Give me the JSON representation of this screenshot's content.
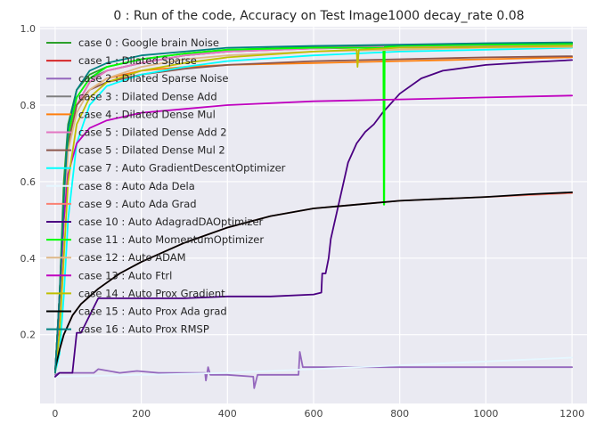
{
  "chart_data": {
    "type": "line",
    "title": "0 : Run of the code, Accuracy on Test Image1000 decay_rate 0.08",
    "xlabel": "",
    "ylabel": "",
    "xlim": [
      -35,
      1235
    ],
    "ylim": [
      0.02,
      1.005
    ],
    "xticks": [
      0,
      200,
      400,
      600,
      800,
      1000,
      1200
    ],
    "yticks": [
      0.2,
      0.4,
      0.6,
      0.8,
      1.0
    ],
    "ytick_labels": [
      "0.2",
      "0.4",
      "0.6",
      "0.8",
      "1.0"
    ],
    "grid": true,
    "legend_position": "top-left",
    "series": [
      {
        "name": "case 0 : Google brain Noise",
        "color": "#2ca02c",
        "x": [
          0,
          10,
          20,
          30,
          50,
          80,
          120,
          200,
          300,
          400,
          600,
          800,
          1000,
          1200
        ],
        "y": [
          0.1,
          0.3,
          0.6,
          0.75,
          0.84,
          0.88,
          0.9,
          0.92,
          0.935,
          0.945,
          0.952,
          0.956,
          0.958,
          0.962
        ]
      },
      {
        "name": "case 1 : Dilated Sparse",
        "color": "#d62728",
        "x": [
          0,
          10,
          20,
          30,
          50,
          80,
          120,
          200,
          300,
          400,
          600,
          800,
          1000,
          1200
        ],
        "y": [
          0.1,
          0.25,
          0.5,
          0.7,
          0.8,
          0.86,
          0.89,
          0.91,
          0.93,
          0.94,
          0.948,
          0.952,
          0.955,
          0.958
        ]
      },
      {
        "name": "case 2 : Dilated Sparse Noise",
        "color": "#9467bd",
        "x": [
          0,
          10,
          20,
          50,
          90,
          100,
          150,
          190,
          240,
          300,
          348,
          350,
          355,
          360,
          400,
          460,
          462,
          470,
          565,
          568,
          575,
          700,
          800,
          1000,
          1200
        ],
        "y": [
          0.095,
          0.1,
          0.1,
          0.1,
          0.1,
          0.11,
          0.1,
          0.105,
          0.1,
          0.1,
          0.1,
          0.08,
          0.115,
          0.095,
          0.095,
          0.09,
          0.06,
          0.095,
          0.095,
          0.155,
          0.115,
          0.115,
          0.115,
          0.115,
          0.115
        ]
      },
      {
        "name": "case 3 : Dilated Dense Add",
        "color": "#7f7f7f",
        "x": [
          0,
          10,
          20,
          30,
          50,
          80,
          120,
          200,
          300,
          400,
          600,
          800,
          1000,
          1200
        ],
        "y": [
          0.1,
          0.3,
          0.55,
          0.72,
          0.82,
          0.87,
          0.89,
          0.91,
          0.93,
          0.94,
          0.95,
          0.955,
          0.958,
          0.96
        ]
      },
      {
        "name": "case 4 : Dilated Dense Mul",
        "color": "#ff7f0e",
        "x": [
          0,
          10,
          20,
          30,
          50,
          80,
          120,
          200,
          300,
          400,
          600,
          800,
          1000,
          1200
        ],
        "y": [
          0.1,
          0.3,
          0.55,
          0.7,
          0.8,
          0.84,
          0.87,
          0.89,
          0.9,
          0.905,
          0.91,
          0.915,
          0.92,
          0.925
        ]
      },
      {
        "name": "case 5 : Dilated Dense Add 2",
        "color": "#e377c2",
        "x": [
          0,
          10,
          20,
          30,
          50,
          80,
          120,
          200,
          300,
          400,
          600,
          800,
          1000,
          1200
        ],
        "y": [
          0.1,
          0.28,
          0.52,
          0.7,
          0.8,
          0.86,
          0.89,
          0.91,
          0.93,
          0.94,
          0.948,
          0.953,
          0.956,
          0.958
        ]
      },
      {
        "name": "case 5 : Dilated Dense Mul 2",
        "color": "#8c564b",
        "x": [
          0,
          10,
          20,
          30,
          50,
          80,
          120,
          200,
          300,
          400,
          600,
          800,
          1000,
          1200
        ],
        "y": [
          0.1,
          0.3,
          0.55,
          0.7,
          0.8,
          0.84,
          0.86,
          0.88,
          0.895,
          0.905,
          0.915,
          0.92,
          0.925,
          0.928
        ]
      },
      {
        "name": "case 7 : Auto GradientDescentOptimizer",
        "color": "#00ffff",
        "x": [
          0,
          10,
          20,
          30,
          50,
          80,
          120,
          200,
          300,
          400,
          600,
          800,
          1000,
          1200
        ],
        "y": [
          0.1,
          0.15,
          0.3,
          0.5,
          0.7,
          0.8,
          0.85,
          0.88,
          0.9,
          0.915,
          0.93,
          0.94,
          0.945,
          0.95
        ]
      },
      {
        "name": "case 8 : Auto Ada Dela",
        "color": "#e6f7ff",
        "x": [
          0,
          200,
          400,
          600,
          800,
          1000,
          1200
        ],
        "y": [
          0.09,
          0.095,
          0.1,
          0.11,
          0.12,
          0.13,
          0.14
        ]
      },
      {
        "name": "case 9 : Auto Ada Grad",
        "color": "#fa8072",
        "x": [
          0,
          10,
          20,
          40,
          60,
          100,
          150,
          200,
          300,
          400,
          500,
          600,
          700,
          800,
          900,
          1000,
          1100,
          1200
        ],
        "y": [
          0.11,
          0.16,
          0.2,
          0.25,
          0.28,
          0.32,
          0.36,
          0.39,
          0.44,
          0.48,
          0.51,
          0.53,
          0.54,
          0.55,
          0.555,
          0.56,
          0.565,
          0.57
        ]
      },
      {
        "name": "case 10 : Auto AdagradDAOptimizer",
        "color": "#4b0082",
        "x": [
          0,
          10,
          40,
          50,
          60,
          100,
          200,
          300,
          400,
          500,
          600,
          618,
          620,
          628,
          635,
          640,
          660,
          680,
          700,
          720,
          740,
          760,
          800,
          850,
          900,
          1000,
          1100,
          1200
        ],
        "y": [
          0.09,
          0.1,
          0.1,
          0.205,
          0.205,
          0.295,
          0.295,
          0.295,
          0.3,
          0.3,
          0.305,
          0.31,
          0.36,
          0.36,
          0.4,
          0.45,
          0.55,
          0.65,
          0.7,
          0.73,
          0.75,
          0.78,
          0.83,
          0.87,
          0.89,
          0.905,
          0.912,
          0.918
        ]
      },
      {
        "name": "case 11 : Auto MomentumOptimizer",
        "color": "#00ff00",
        "x": [
          0,
          10,
          20,
          30,
          50,
          80,
          120,
          200,
          300,
          400,
          600,
          762,
          763,
          764,
          765,
          800,
          1000,
          1200
        ],
        "y": [
          0.1,
          0.3,
          0.55,
          0.72,
          0.82,
          0.87,
          0.9,
          0.92,
          0.935,
          0.945,
          0.95,
          0.95,
          0.54,
          0.54,
          0.952,
          0.955,
          0.958,
          0.96
        ]
      },
      {
        "name": "case 12 : Auto ADAM",
        "color": "#deb887",
        "x": [
          0,
          10,
          20,
          30,
          50,
          80,
          120,
          200,
          300,
          400,
          600,
          800,
          1000,
          1200
        ],
        "y": [
          0.1,
          0.28,
          0.5,
          0.68,
          0.78,
          0.84,
          0.87,
          0.9,
          0.92,
          0.93,
          0.94,
          0.945,
          0.95,
          0.952
        ]
      },
      {
        "name": "case 13 : Auto Ftrl",
        "color": "#bf00bf",
        "x": [
          0,
          10,
          20,
          30,
          50,
          80,
          120,
          200,
          300,
          400,
          600,
          800,
          1000,
          1200
        ],
        "y": [
          0.1,
          0.3,
          0.5,
          0.62,
          0.7,
          0.74,
          0.76,
          0.78,
          0.79,
          0.8,
          0.81,
          0.815,
          0.82,
          0.825
        ]
      },
      {
        "name": "case 14 : Auto Prox Gradient",
        "color": "#bfbf00",
        "x": [
          0,
          10,
          20,
          30,
          50,
          80,
          120,
          200,
          300,
          400,
          600,
          700,
          702,
          705,
          800,
          1000,
          1200
        ],
        "y": [
          0.1,
          0.2,
          0.4,
          0.6,
          0.75,
          0.82,
          0.86,
          0.89,
          0.91,
          0.925,
          0.94,
          0.945,
          0.9,
          0.945,
          0.95,
          0.952,
          0.955
        ]
      },
      {
        "name": "case 15 : Auto Prox Ada grad",
        "color": "#000000",
        "x": [
          0,
          10,
          20,
          40,
          60,
          100,
          150,
          200,
          300,
          400,
          500,
          600,
          700,
          800,
          900,
          1000,
          1100,
          1200
        ],
        "y": [
          0.11,
          0.16,
          0.2,
          0.25,
          0.28,
          0.32,
          0.36,
          0.39,
          0.44,
          0.48,
          0.51,
          0.53,
          0.54,
          0.55,
          0.555,
          0.56,
          0.567,
          0.572
        ]
      },
      {
        "name": "case 16 : Auto Prox RMSP",
        "color": "#008080",
        "x": [
          0,
          10,
          20,
          30,
          50,
          80,
          120,
          200,
          300,
          400,
          600,
          800,
          1000,
          1200
        ],
        "y": [
          0.1,
          0.3,
          0.55,
          0.74,
          0.84,
          0.89,
          0.91,
          0.93,
          0.94,
          0.95,
          0.955,
          0.958,
          0.962,
          0.964
        ]
      }
    ]
  }
}
